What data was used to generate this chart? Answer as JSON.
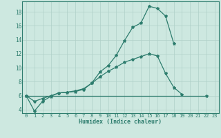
{
  "xlabel": "Humidex (Indice chaleur)",
  "x_values": [
    0,
    1,
    2,
    3,
    4,
    5,
    6,
    7,
    8,
    9,
    10,
    11,
    12,
    13,
    14,
    15,
    16,
    17,
    18,
    19,
    20,
    21,
    22,
    23
  ],
  "line1": [
    6.0,
    3.8,
    5.2,
    5.9,
    6.4,
    6.5,
    6.6,
    6.9,
    7.8,
    9.4,
    10.3,
    11.8,
    13.9,
    15.8,
    16.4,
    18.8,
    18.5,
    17.4,
    13.5,
    null,
    null,
    null,
    null,
    null
  ],
  "line2": [
    6.0,
    5.2,
    5.6,
    6.0,
    6.4,
    6.5,
    6.7,
    7.0,
    7.8,
    8.7,
    9.5,
    10.1,
    10.8,
    11.2,
    11.6,
    12.0,
    11.7,
    9.2,
    7.2,
    6.2,
    null,
    null,
    null,
    null
  ],
  "line3_x": [
    0,
    22
  ],
  "line3_y": [
    6.0,
    6.0
  ],
  "line_color": "#2e7d6e",
  "bg_color": "#cde8e0",
  "grid_color": "#afd0c8",
  "ylim": [
    3.5,
    19.5
  ],
  "yticks": [
    4,
    6,
    8,
    10,
    12,
    14,
    16,
    18
  ],
  "xlim": [
    -0.5,
    23.5
  ]
}
